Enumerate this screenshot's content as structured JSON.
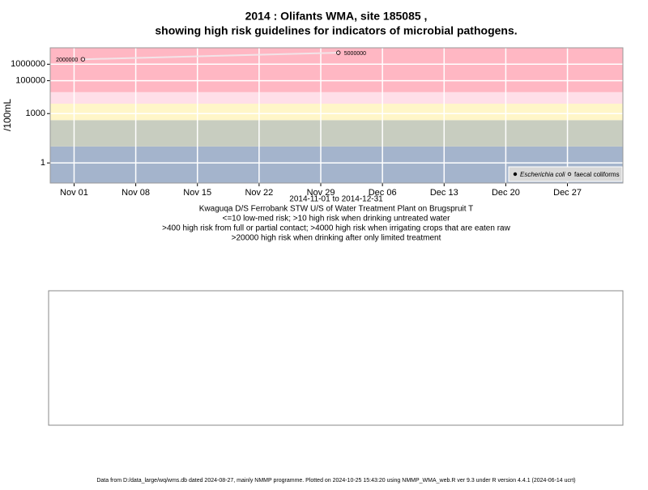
{
  "chart_data": {
    "type": "line",
    "title": "2014 : Olifants WMA, site 185085 ,",
    "subtitle": "showing high risk guidelines for indicators of microbial pathogens.",
    "y_label": "/100mL",
    "x_label_lines": [
      "2014-11-01 to 2014-12-31",
      "Kwaguqa D/S Ferrobank STW U/S of Water Treatment Plant on Brugspruit T",
      "<=10 low-med risk; >10 high risk when drinking untreated water",
      ">400 high risk from full or partial contact; >4000 high risk when irrigating crops that are eaten raw",
      ">20000 high risk when drinking after only limited treatment"
    ],
    "footer": "Data from D:/data_large/wq/wms.db dated 2024-08-27, mainly NMMP programme. Plotted on 2024-10-25 15:43:20 using NMMP_WMA_web.R ver 9.3 under R version 4.4.1 (2024-06-14 ucrt)",
    "log_y": true,
    "ylim": [
      0.06,
      10000000
    ],
    "yticks": [
      1,
      1000,
      100000,
      1000000
    ],
    "xlim": [
      "2014-10-29T07:00",
      "2015-01-02T07:00"
    ],
    "xticks": [
      {
        "value": "2014-11-01",
        "label": "Nov 01"
      },
      {
        "value": "2014-11-08",
        "label": "Nov 08"
      },
      {
        "value": "2014-11-15",
        "label": "Nov 15"
      },
      {
        "value": "2014-11-22",
        "label": "Nov 22"
      },
      {
        "value": "2014-11-29",
        "label": "Nov 29"
      },
      {
        "value": "2014-12-06",
        "label": "Dec 06"
      },
      {
        "value": "2014-12-13",
        "label": "Dec 13"
      },
      {
        "value": "2014-12-20",
        "label": "Dec 20"
      },
      {
        "value": "2014-12-27",
        "label": "Dec 27"
      }
    ],
    "grid": true,
    "thresholds": [
      10,
      400,
      4000,
      20000
    ],
    "band_colors": [
      "#a4b4cc",
      "#c8cdc0",
      "#fff6c8",
      "#ffdfe8",
      "#ffb7c3"
    ],
    "legend_position": "bottomright",
    "series": [
      {
        "name": "Escherichia coli",
        "color": "#000000",
        "x": [],
        "values": []
      },
      {
        "name": "faecal coliforms",
        "color": "#f2e4e8",
        "x": [
          "2014-11-02",
          "2014-12-01"
        ],
        "values": [
          2000000,
          5000000
        ]
      }
    ]
  }
}
